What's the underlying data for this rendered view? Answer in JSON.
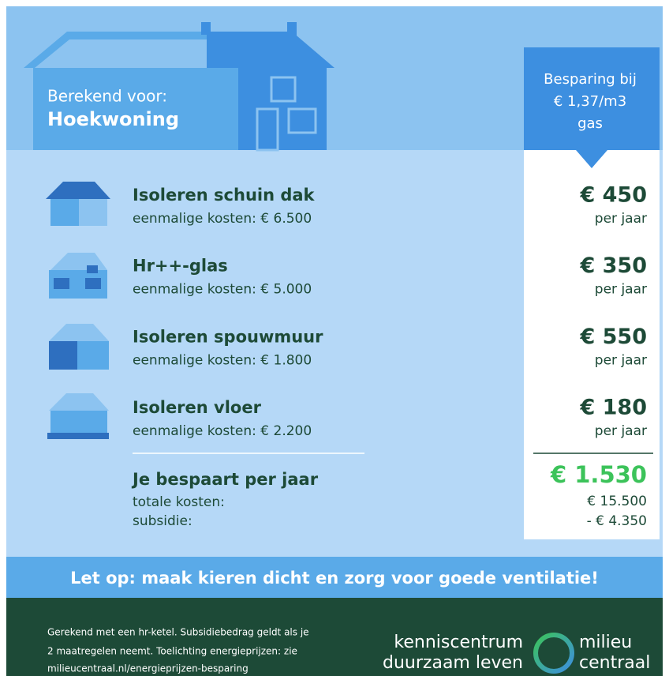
{
  "header": {
    "label": "Berekend voor:",
    "title": "Hoekwoning"
  },
  "savings_header": {
    "lines": [
      "Besparing bij",
      "€ 1,37/m3",
      "gas"
    ]
  },
  "items": [
    {
      "title": "Isoleren schuin dak",
      "cost": "eenmalige kosten: € 6.500",
      "saving": "€ 450",
      "unit": "per jaar"
    },
    {
      "title": "Hr++-glas",
      "cost": "eenmalige kosten: € 5.000",
      "saving": "€ 350",
      "unit": "per jaar"
    },
    {
      "title": "Isoleren spouwmuur",
      "cost": "eenmalige kosten: € 1.800",
      "saving": "€ 550",
      "unit": "per jaar"
    },
    {
      "title": "Isoleren vloer",
      "cost": "eenmalige kosten: € 2.200",
      "saving": "€ 180",
      "unit": "per jaar"
    }
  ],
  "total": {
    "title": "Je bespaart per jaar",
    "saving": "€ 1.530",
    "rows": [
      {
        "label": "totale kosten:",
        "value": "€ 15.500"
      },
      {
        "label": "subsidie:",
        "value": "- € 4.350"
      }
    ]
  },
  "banner": "Let op: maak kieren dicht en zorg voor goede ventilatie!",
  "footer": {
    "note": [
      "Gerekend met een hr-ketel. Subsidiebedrag geldt als je",
      "2 maatregelen neemt. Toelichting energieprijzen: zie",
      "milieucentraal.nl/energieprijzen-besparing"
    ],
    "logo_left": [
      "kenniscentrum",
      "duurzaam leven"
    ],
    "logo_right": [
      "milieu",
      "centraal"
    ]
  }
}
